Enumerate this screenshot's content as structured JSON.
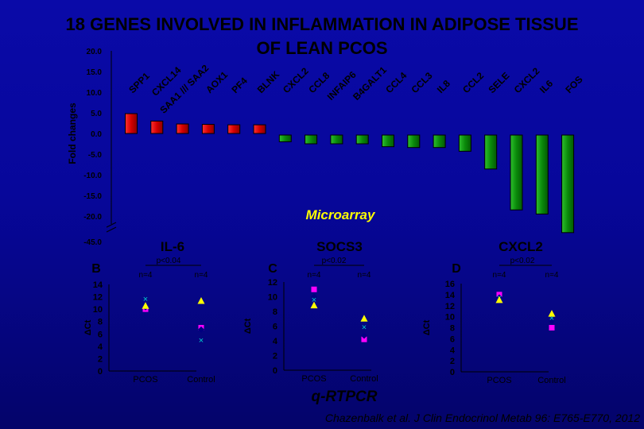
{
  "title_line1": "18 GENES INVOLVED IN INFLAMMATION IN ADIPOSE TISSUE",
  "title_line2": "OF LEAN PCOS",
  "citation": "Chazenbalk et al. J Clin Endocrinol Metab 96: E765-E770, 2012",
  "colors": {
    "up_bar": "#d40000",
    "down_bar": "#0a8a0a",
    "text": "#000000",
    "microarray_label": "#ffff00",
    "bg_top": "#0a0aa8",
    "bg_bottom": "#04046a",
    "pcos_square": "#ff00ff",
    "pcos_diamond": "#000080",
    "pcos_x": "#00cccc",
    "pcos_triangle": "#ffff00"
  },
  "chart_data": [
    {
      "type": "bar",
      "label": "Microarray",
      "ylabel": "Fold changes",
      "y_ticks": [
        "20.0",
        "15.0",
        "10.0",
        "5.0",
        "0.0",
        "-5.0",
        "-10.0",
        "-15.0",
        "-20.0",
        "-45.0"
      ],
      "axis_break": "-20.0 to -45.0",
      "categories": [
        "SPP1",
        "CXCL14",
        "SAA1 /// SAA2",
        "AOX1",
        "PF4",
        "BLNK",
        "CXCL2",
        "CCL8",
        "INFAIP6",
        "B4GALT1",
        "CCL4",
        "CCL3",
        "IL8",
        "CCL2",
        "SELE",
        "CXCL2",
        "IL6",
        "FOS"
      ],
      "values": [
        4.8,
        3.0,
        2.3,
        2.2,
        2.1,
        2.1,
        -2.0,
        -2.5,
        -2.5,
        -2.5,
        -3.2,
        -3.4,
        -3.4,
        -4.3,
        -8.6,
        -18.5,
        -19.5,
        -35.0
      ]
    },
    {
      "type": "scatter",
      "panel": "B",
      "title": "IL-6",
      "pvalue": "p<0.04",
      "ylabel": "ΔCt",
      "y_ticks": [
        "14",
        "12",
        "10",
        "8",
        "6",
        "4",
        "2",
        "0"
      ],
      "ylim": [
        0,
        14
      ],
      "groups": [
        {
          "name": "PCOS",
          "n": "n=4",
          "square": 10.0,
          "diamond": 10.3,
          "x": 11.7,
          "triangle": 10.5
        },
        {
          "name": "Control",
          "n": "n=4",
          "square": 7.0,
          "diamond": 6.7,
          "x": 5.0,
          "triangle": 11.3
        }
      ]
    },
    {
      "type": "scatter",
      "panel": "C",
      "title": "SOCS3",
      "pvalue": "p<0.02",
      "ylabel": "ΔCt",
      "y_ticks": [
        "12",
        "10",
        "8",
        "6",
        "4",
        "2",
        "0"
      ],
      "ylim": [
        0,
        12
      ],
      "groups": [
        {
          "name": "PCOS",
          "n": "n=4",
          "square": 11.0,
          "diamond": 10.0,
          "x": 9.6,
          "triangle": 8.8
        },
        {
          "name": "Control",
          "n": "n=4",
          "square": 4.2,
          "diamond": 4.7,
          "x": 5.9,
          "triangle": 7.0
        }
      ]
    },
    {
      "type": "scatter",
      "panel": "D",
      "title": "CXCL2",
      "pvalue": "p<0.02",
      "ylabel": "ΔCt",
      "y_ticks": [
        "16",
        "14",
        "12",
        "10",
        "8",
        "6",
        "4",
        "2",
        "0"
      ],
      "ylim": [
        0,
        16
      ],
      "groups": [
        {
          "name": "PCOS",
          "n": "n=4",
          "square": 14.0,
          "diamond": 13.5,
          "x": 13.5,
          "triangle": 13.0
        },
        {
          "name": "Control",
          "n": "n=4",
          "square": 8.0,
          "diamond": 9.2,
          "x": 9.8,
          "triangle": 10.5
        }
      ]
    }
  ],
  "qrtpcr_label": "q-RTPCR"
}
